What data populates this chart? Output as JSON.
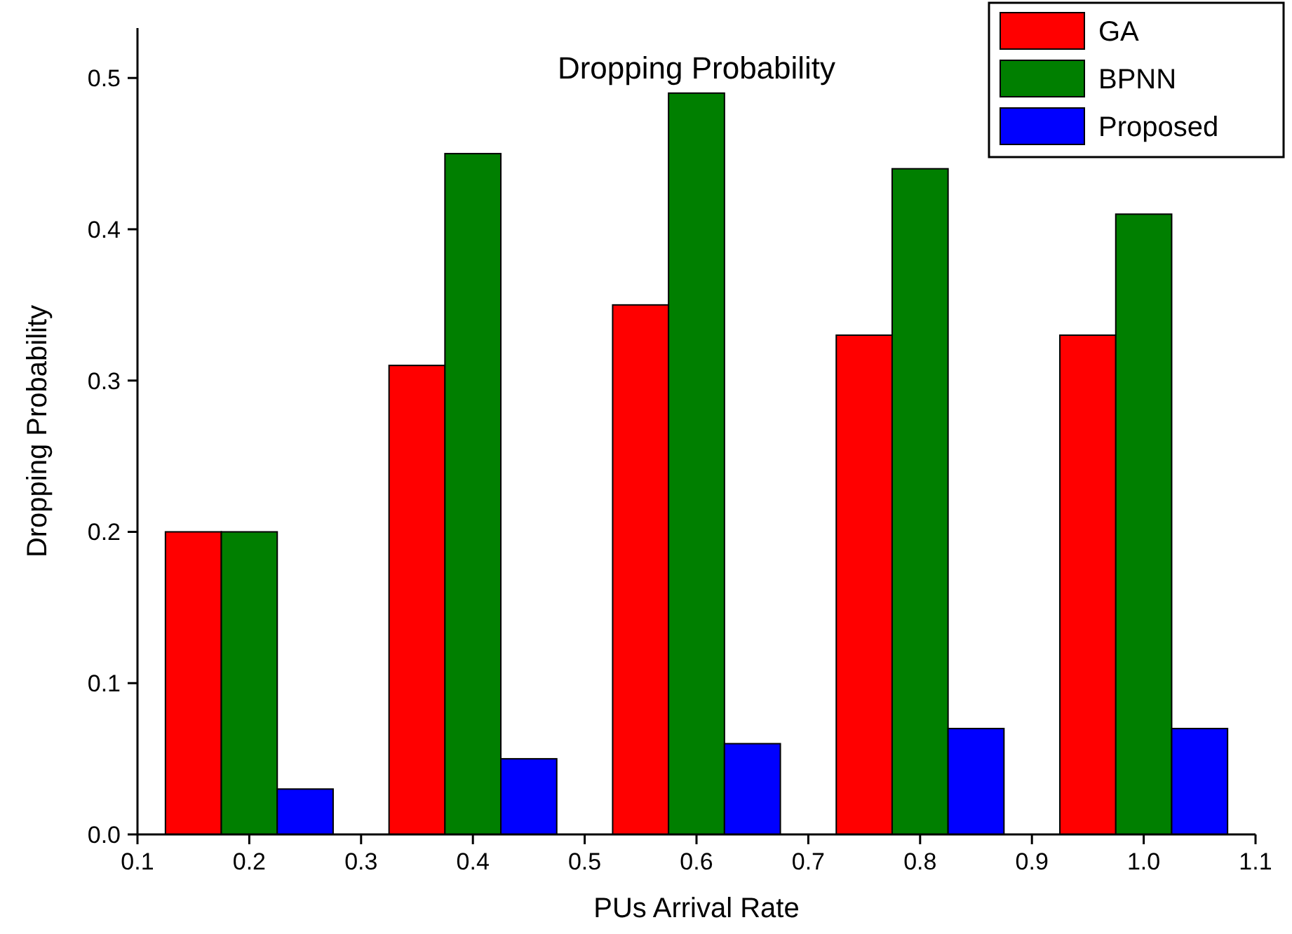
{
  "chart_data": {
    "type": "bar",
    "title": "Dropping Probability",
    "xlabel": "PUs Arrival Rate",
    "ylabel": "Dropping Probability",
    "x": [
      0.2,
      0.4,
      0.6,
      0.8,
      1.0
    ],
    "series": [
      {
        "name": "GA",
        "color": "#ff0000",
        "values": [
          0.2,
          0.31,
          0.35,
          0.33,
          0.33
        ]
      },
      {
        "name": "BPNN",
        "color": "#007f00",
        "values": [
          0.2,
          0.45,
          0.49,
          0.44,
          0.41
        ]
      },
      {
        "name": "Proposed",
        "color": "#0000ff",
        "values": [
          0.03,
          0.05,
          0.06,
          0.07,
          0.07
        ]
      }
    ],
    "xlim": [
      0.1,
      1.1
    ],
    "xticks": [
      0.1,
      0.2,
      0.3,
      0.4,
      0.5,
      0.6,
      0.7,
      0.8,
      0.9,
      {
        "value": 1.0,
        "label": "1.0"
      },
      1.1
    ],
    "ylim": [
      0,
      0.533
    ],
    "yticks": [
      {
        "value": 0,
        "label": "0.0"
      },
      0.1,
      0.2,
      0.3,
      0.4,
      0.5
    ],
    "grid": false,
    "legend": "top right"
  }
}
